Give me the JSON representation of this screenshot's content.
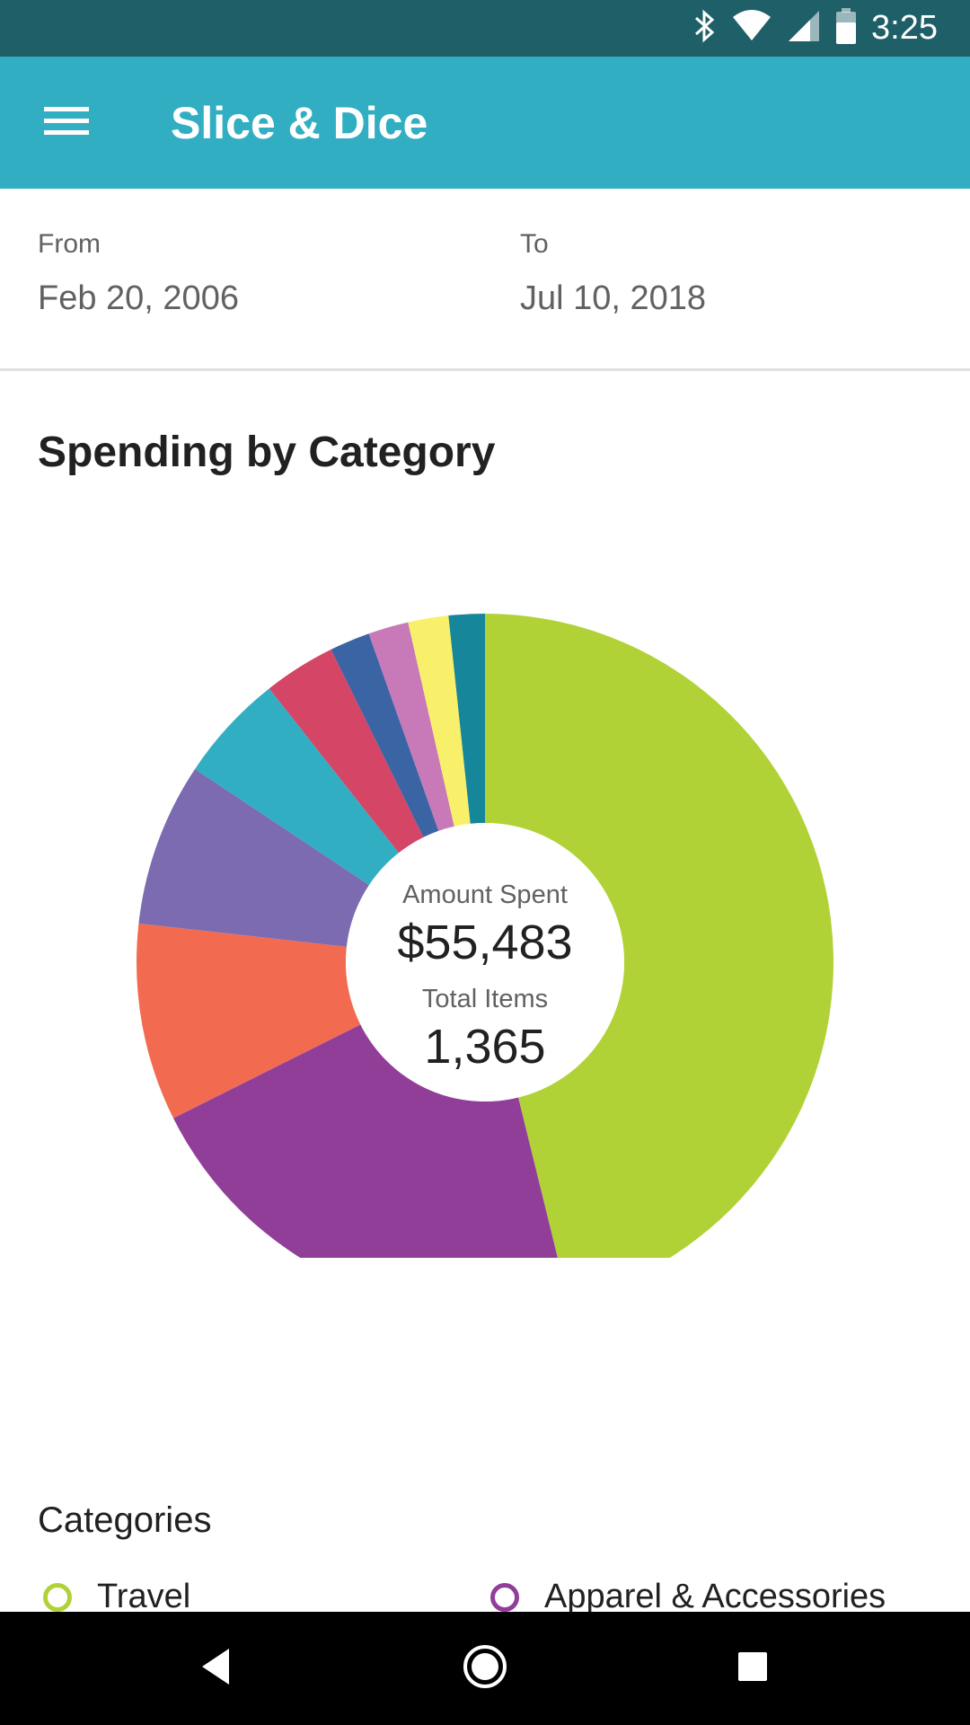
{
  "status_bar": {
    "time": "3:25",
    "icons": [
      "bluetooth-icon",
      "wifi-icon",
      "cell-signal-icon",
      "battery-icon"
    ]
  },
  "app_bar": {
    "title": "Slice & Dice",
    "menu_icon": "hamburger-menu-icon"
  },
  "date_range": {
    "from_label": "From",
    "from_value": "Feb 20, 2006",
    "to_label": "To",
    "to_value": "Jul 10, 2018"
  },
  "section": {
    "title": "Spending by Category"
  },
  "chart_center": {
    "amount_label": "Amount Spent",
    "amount_value": "$55,483",
    "items_label": "Total Items",
    "items_value": "1,365"
  },
  "chart_data": {
    "type": "pie",
    "donut": true,
    "title": "Spending by Category",
    "slices": [
      {
        "name": "Travel",
        "percent": 46.9,
        "color": "#b1d236"
      },
      {
        "name": "Apparel & Accessories",
        "percent": 21.8,
        "color": "#913e99"
      },
      {
        "name": "",
        "percent": 9.3,
        "color": "#f26b50"
      },
      {
        "name": "",
        "percent": 7.7,
        "color": "#7c6bb0"
      },
      {
        "name": "",
        "percent": 5.1,
        "color": "#32aec3"
      },
      {
        "name": "",
        "percent": 3.4,
        "color": "#d44566"
      },
      {
        "name": "",
        "percent": 1.9,
        "color": "#3b64a5"
      },
      {
        "name": "",
        "percent": 1.9,
        "color": "#c879b8"
      },
      {
        "name": "",
        "percent": 1.9,
        "color": "#f8f06a"
      },
      {
        "name": "",
        "percent": 1.7,
        "color": "#16869a"
      }
    ]
  },
  "categories": {
    "heading": "Categories",
    "items": [
      {
        "label": "Travel",
        "color": "#b1d236"
      },
      {
        "label": "Apparel & Accessories",
        "color": "#913e99"
      }
    ]
  },
  "nav_bar": {
    "icons": [
      "back-icon",
      "home-icon",
      "recents-icon"
    ]
  }
}
